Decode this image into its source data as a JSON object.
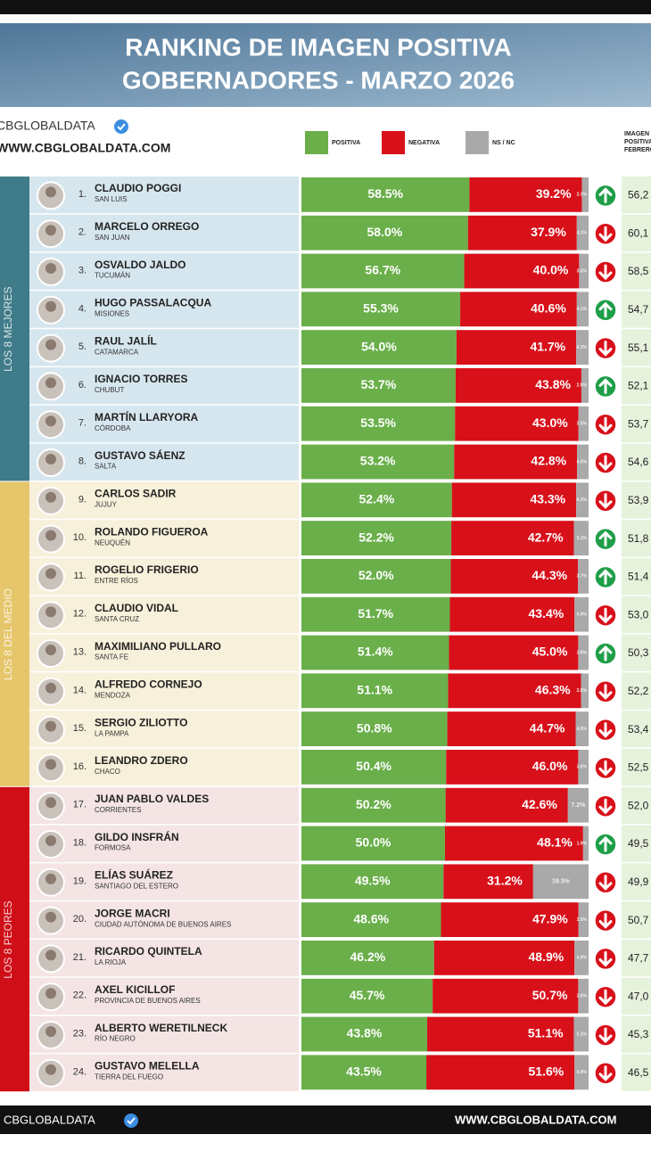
{
  "chart_data": {
    "type": "stacked-bar",
    "title": [
      "RANKING DE IMAGEN POSITIVA",
      "GOBERNADORES - MARZO 2026"
    ],
    "brand": "CBGLOBALDATA",
    "website": "WWW.CBGLOBALDATA.COM",
    "previous_header": [
      "IMAGEN",
      "POSITIVA",
      "FEBRERO"
    ],
    "xlim": [
      0,
      100
    ],
    "series": [
      {
        "name": "POSITIVA",
        "color": "#6aaf4a"
      },
      {
        "name": "NEGATIVA",
        "color": "#d8101a"
      },
      {
        "name": "NS / NC",
        "color": "#a9a9a9"
      }
    ],
    "trend_colors": {
      "up": "#1e9e48",
      "down": "#d8101a"
    },
    "groups": [
      {
        "label": "LOS 8 MEJORES",
        "color": "#3f7b89",
        "background": "#d6e6ee",
        "rows": [
          {
            "rank": "1.",
            "name": "CLAUDIO POGGI",
            "province": "SAN LUIS",
            "values": [
              58.5,
              39.2,
              2.3
            ],
            "value_labels": [
              "58.5%",
              "39.2%",
              "2.3%"
            ],
            "trend": "up",
            "previous": "56,2"
          },
          {
            "rank": "2.",
            "name": "MARCELO ORREGO",
            "province": "SAN JUAN",
            "values": [
              58.0,
              37.9,
              4.1
            ],
            "value_labels": [
              "58.0%",
              "37.9%",
              "4.1%"
            ],
            "trend": "down",
            "previous": "60,1"
          },
          {
            "rank": "3.",
            "name": "OSVALDO JALDO",
            "province": "TUCUMÁN",
            "values": [
              56.7,
              40.0,
              3.3
            ],
            "value_labels": [
              "56.7%",
              "40.0%",
              "3.3%"
            ],
            "trend": "down",
            "previous": "58,5"
          },
          {
            "rank": "4.",
            "name": "HUGO PASSALACQUA",
            "province": "MISIONES",
            "values": [
              55.3,
              40.6,
              4.1
            ],
            "value_labels": [
              "55.3%",
              "40.6%",
              "4.1%"
            ],
            "trend": "up",
            "previous": "54,7"
          },
          {
            "rank": "5.",
            "name": "RAUL JALÍL",
            "province": "CATAMARCA",
            "values": [
              54.0,
              41.7,
              4.3
            ],
            "value_labels": [
              "54.0%",
              "41.7%",
              "4.3%"
            ],
            "trend": "down",
            "previous": "55,1"
          },
          {
            "rank": "6.",
            "name": "IGNACIO TORRES",
            "province": "CHUBUT",
            "values": [
              53.7,
              43.8,
              2.5
            ],
            "value_labels": [
              "53.7%",
              "43.8%",
              "2.5%"
            ],
            "trend": "up",
            "previous": "52,1"
          },
          {
            "rank": "7.",
            "name": "MARTÍN LLARYORA",
            "province": "CÓRDOBA",
            "values": [
              53.5,
              43.0,
              3.5
            ],
            "value_labels": [
              "53.5%",
              "43.0%",
              "3.5%"
            ],
            "trend": "down",
            "previous": "53,7"
          },
          {
            "rank": "8.",
            "name": "GUSTAVO SÁENZ",
            "province": "SALTA",
            "values": [
              53.2,
              42.8,
              4.0
            ],
            "value_labels": [
              "53.2%",
              "42.8%",
              "4.0%"
            ],
            "trend": "down",
            "previous": "54,6"
          }
        ]
      },
      {
        "label": "LOS 8 DEL MEDIO",
        "color": "#e6c66a",
        "background": "#f7f0da",
        "rows": [
          {
            "rank": "9.",
            "name": "CARLOS SADIR",
            "province": "JUJUY",
            "values": [
              52.4,
              43.3,
              4.3
            ],
            "value_labels": [
              "52.4%",
              "43.3%",
              "4.3%"
            ],
            "trend": "down",
            "previous": "53,9"
          },
          {
            "rank": "10.",
            "name": "ROLANDO FIGUEROA",
            "province": "NEUQUÉN",
            "values": [
              52.2,
              42.7,
              5.1
            ],
            "value_labels": [
              "52.2%",
              "42.7%",
              "5.1%"
            ],
            "trend": "up",
            "previous": "51,8"
          },
          {
            "rank": "11.",
            "name": "ROGELIO FRIGERIO",
            "province": "ENTRE RÍOS",
            "values": [
              52.0,
              44.3,
              3.7
            ],
            "value_labels": [
              "52.0%",
              "44.3%",
              "3.7%"
            ],
            "trend": "up",
            "previous": "51,4"
          },
          {
            "rank": "12.",
            "name": "CLAUDIO VIDAL",
            "province": "SANTA CRUZ",
            "values": [
              51.7,
              43.4,
              4.9
            ],
            "value_labels": [
              "51.7%",
              "43.4%",
              "4.9%"
            ],
            "trend": "down",
            "previous": "53,0"
          },
          {
            "rank": "13.",
            "name": "MAXIMILIANO PULLARO",
            "province": "SANTA FE",
            "values": [
              51.4,
              45.0,
              3.6
            ],
            "value_labels": [
              "51.4%",
              "45.0%",
              "3.6%"
            ],
            "trend": "up",
            "previous": "50,3"
          },
          {
            "rank": "14.",
            "name": "ALFREDO CORNEJO",
            "province": "MENDOZA",
            "values": [
              51.1,
              46.3,
              2.6
            ],
            "value_labels": [
              "51.1%",
              "46.3%",
              "2.6%"
            ],
            "trend": "down",
            "previous": "52,2"
          },
          {
            "rank": "15.",
            "name": "SERGIO ZILIOTTO",
            "province": "LA PAMPA",
            "values": [
              50.8,
              44.7,
              4.5
            ],
            "value_labels": [
              "50.8%",
              "44.7%",
              "4.5%"
            ],
            "trend": "down",
            "previous": "53,4"
          },
          {
            "rank": "16.",
            "name": "LEANDRO ZDERO",
            "province": "CHACO",
            "values": [
              50.4,
              46.0,
              3.6
            ],
            "value_labels": [
              "50.4%",
              "46.0%",
              "3.6%"
            ],
            "trend": "down",
            "previous": "52,5"
          }
        ]
      },
      {
        "label": "LOS 8 PEORES",
        "color": "#cf0e18",
        "background": "#f4e4e4",
        "rows": [
          {
            "rank": "17.",
            "name": "JUAN PABLO VALDES",
            "province": "CORRIENTES",
            "values": [
              50.2,
              42.6,
              7.2
            ],
            "value_labels": [
              "50.2%",
              "42.6%",
              "7.2%"
            ],
            "trend": "down",
            "previous": "52,0"
          },
          {
            "rank": "18.",
            "name": "GILDO INSFRÁN",
            "province": "FORMOSA",
            "values": [
              50.0,
              48.1,
              1.9
            ],
            "value_labels": [
              "50.0%",
              "48.1%",
              "1.9%"
            ],
            "trend": "up",
            "previous": "49,5"
          },
          {
            "rank": "19.",
            "name": "ELÍAS SUÁREZ",
            "province": "SANTIAGO DEL ESTERO",
            "values": [
              49.5,
              31.2,
              19.3
            ],
            "value_labels": [
              "49.5%",
              "31.2%",
              "19.3%"
            ],
            "trend": "down",
            "previous": "49,9"
          },
          {
            "rank": "20.",
            "name": "JORGE MACRI",
            "province": "CIUDAD AUTÓNOMA DE BUENOS AIRES",
            "values": [
              48.6,
              47.9,
              3.5
            ],
            "value_labels": [
              "48.6%",
              "47.9%",
              "3.5%"
            ],
            "trend": "down",
            "previous": "50,7"
          },
          {
            "rank": "21.",
            "name": "RICARDO QUINTELA",
            "province": "LA RIOJA",
            "values": [
              46.2,
              48.9,
              4.9
            ],
            "value_labels": [
              "46.2%",
              "48.9%",
              "4.9%"
            ],
            "trend": "down",
            "previous": "47,7"
          },
          {
            "rank": "22.",
            "name": "AXEL KICILLOF",
            "province": "PROVINCIA DE BUENOS AIRES",
            "values": [
              45.7,
              50.7,
              3.6
            ],
            "value_labels": [
              "45.7%",
              "50.7%",
              "3.6%"
            ],
            "trend": "down",
            "previous": "47,0"
          },
          {
            "rank": "23.",
            "name": "ALBERTO WERETILNECK",
            "province": "RÍO NEGRO",
            "values": [
              43.8,
              51.1,
              5.1
            ],
            "value_labels": [
              "43.8%",
              "51.1%",
              "5.1%"
            ],
            "trend": "down",
            "previous": "45,3"
          },
          {
            "rank": "24.",
            "name": "GUSTAVO MELELLA",
            "province": "TIERRA DEL FUEGO",
            "values": [
              43.5,
              51.6,
              4.9
            ],
            "value_labels": [
              "43.5%",
              "51.6%",
              "4.9%"
            ],
            "trend": "down",
            "previous": "46,5"
          }
        ]
      }
    ]
  }
}
